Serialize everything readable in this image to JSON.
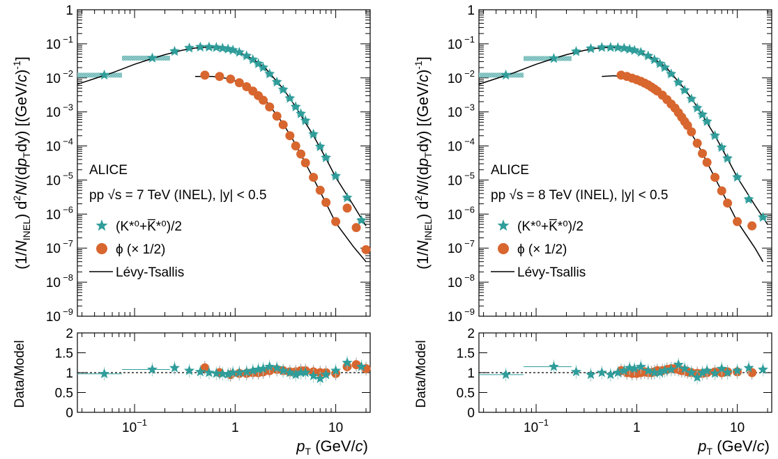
{
  "colors": {
    "kstar": "#2f9d9a",
    "kstar_box": "#9fd0cf",
    "phi": "#d8662f",
    "phi_box": "#f3c29a",
    "fit": "#000000"
  },
  "common": {
    "xlabel_p": "p",
    "xlabel_sub": "T",
    "xlabel_unit": " (GeV/",
    "xlabel_c": "c",
    "xlabel_close": ")",
    "ratio_ylabel": "Data/Model",
    "xtick_labels": [
      "10",
      "1",
      "10"
    ],
    "xtick_exps": [
      "−1",
      "",
      ""
    ],
    "ytick_mantissa": "10",
    "ytick_exps": [
      "−9",
      "−8",
      "−7",
      "−6",
      "−5",
      "−4",
      "−3",
      "−2",
      "−1"
    ],
    "ytick_one": "1",
    "ratio_ticks": [
      "0",
      "0.5",
      "1",
      "1.5",
      "2"
    ],
    "ylabel": {
      "p1": "(1/",
      "N": "N",
      "inel": "INEL",
      "p2": ") d",
      "sq": "2",
      "N2": "N",
      "p3": "/(d",
      "p": "p",
      "T": "T",
      "p4": "dy) [(GeV/",
      "c": "c",
      "p5": ")",
      "m1": "-1",
      "p6": "]"
    },
    "legend": {
      "alice": "ALICE",
      "kstar_label": "(K*⁰+K̅*⁰)/2",
      "phi_label": "ϕ (× 1/2)",
      "fit_label": "Lévy-Tsallis"
    }
  },
  "panels": [
    {
      "energy_text": "pp  √s = 7 TeV (INEL), |y| < 0.5"
    },
    {
      "energy_text": "pp  √s = 8 TeV (INEL), |y| < 0.5"
    }
  ],
  "chart_data": [
    {
      "type": "scatter",
      "title": "",
      "xlabel": "pT (GeV/c)",
      "ylabel": "(1/N_INEL) d2N/(dpT dy) [(GeV/c)-1]",
      "xscale": "log",
      "yscale": "log",
      "xlim": [
        0.027,
        22
      ],
      "ylim": [
        1e-09,
        1
      ],
      "ratio_ylim": [
        0,
        2
      ],
      "legend_position": "left-middle",
      "series": [
        {
          "name": "(K*0+K̅*0)/2",
          "marker": "star",
          "x": [
            0.05,
            0.15,
            0.25,
            0.35,
            0.45,
            0.55,
            0.65,
            0.75,
            0.85,
            0.95,
            1.1,
            1.3,
            1.5,
            1.7,
            1.9,
            2.2,
            2.6,
            3.0,
            3.5,
            4.0,
            4.5,
            5.0,
            6.0,
            7.0,
            8.0,
            10.0,
            13.0,
            18.0
          ],
          "y": [
            0.012,
            0.038,
            0.06,
            0.075,
            0.08,
            0.08,
            0.078,
            0.074,
            0.07,
            0.065,
            0.056,
            0.044,
            0.034,
            0.026,
            0.02,
            0.013,
            0.0075,
            0.0045,
            0.0025,
            0.0014,
            0.00088,
            0.00055,
            0.00022,
            9.5e-05,
            4.5e-05,
            1.3e-05,
            3e-06,
            6.5e-07
          ],
          "ratio": [
            0.97,
            1.08,
            1.12,
            1.05,
            1.02,
            1.0,
            0.98,
            0.97,
            0.96,
            1.0,
            1.0,
            1.02,
            1.05,
            1.08,
            1.1,
            1.15,
            1.12,
            1.05,
            1.0,
            0.95,
            1.0,
            1.0,
            0.92,
            0.85,
            0.95,
            1.05,
            1.25,
            1.15
          ]
        },
        {
          "name": "ϕ (× 1/2)",
          "marker": "circle",
          "x": [
            0.5,
            0.7,
            0.9,
            1.1,
            1.3,
            1.5,
            1.7,
            1.9,
            2.2,
            2.6,
            3.0,
            3.5,
            4.0,
            4.5,
            5.0,
            6.0,
            7.0,
            8.0,
            10.0,
            13.0,
            16.0,
            20.0
          ],
          "y": [
            0.012,
            0.011,
            0.0092,
            0.0072,
            0.0055,
            0.0041,
            0.003,
            0.0022,
            0.0014,
            0.00075,
            0.00042,
            0.0002,
            0.0001,
            5.8e-05,
            3.2e-05,
            1.2e-05,
            5e-06,
            2.2e-06,
            6e-07,
            1.5e-06,
            4e-07,
            9e-08
          ],
          "ratio": [
            1.12,
            1.0,
            0.95,
            0.98,
            0.98,
            1.0,
            1.0,
            1.02,
            1.05,
            1.08,
            1.05,
            1.02,
            1.02,
            1.05,
            1.05,
            1.02,
            1.0,
            1.0,
            0.98,
            1.15,
            1.2,
            1.1
          ]
        },
        {
          "name": "Lévy-Tsallis",
          "marker": "line",
          "curves": [
            {
              "for": "kstar",
              "x": [
                0.027,
                0.04,
                0.06,
                0.1,
                0.15,
                0.2,
                0.3,
                0.4,
                0.5,
                0.6,
                0.8,
                1.0,
                1.5,
                2.0,
                3.0,
                4.0,
                6.0,
                8.0,
                10.0,
                15.0,
                20.0
              ],
              "y": [
                0.0065,
                0.0095,
                0.014,
                0.025,
                0.037,
                0.048,
                0.065,
                0.075,
                0.079,
                0.079,
                0.073,
                0.063,
                0.036,
                0.019,
                0.0048,
                0.0014,
                0.0002,
                4.3e-05,
                1.2e-05,
                1.8e-06,
                4.5e-07
              ]
            },
            {
              "for": "phi",
              "x": [
                0.4,
                0.6,
                0.8,
                1.0,
                1.5,
                2.0,
                3.0,
                4.0,
                6.0,
                8.0,
                10.0,
                15.0,
                20.0
              ],
              "y": [
                0.011,
                0.011,
                0.0098,
                0.0082,
                0.0046,
                0.0022,
                0.00045,
                0.00011,
                1.1e-05,
                2.1e-06,
                5.5e-07,
                1.1e-07,
                4e-08
              ]
            }
          ]
        }
      ]
    },
    {
      "type": "scatter",
      "title": "",
      "xlabel": "pT (GeV/c)",
      "ylabel": "(1/N_INEL) d2N/(dpT dy) [(GeV/c)-1]",
      "xscale": "log",
      "yscale": "log",
      "xlim": [
        0.027,
        22
      ],
      "ylim": [
        1e-09,
        1
      ],
      "ratio_ylim": [
        0,
        2
      ],
      "legend_position": "left-middle",
      "series": [
        {
          "name": "(K*0+K̅*0)/2",
          "marker": "star",
          "x": [
            0.05,
            0.15,
            0.25,
            0.35,
            0.45,
            0.55,
            0.65,
            0.75,
            0.85,
            0.95,
            1.1,
            1.3,
            1.5,
            1.7,
            1.9,
            2.2,
            2.6,
            3.0,
            3.5,
            4.0,
            4.5,
            5.0,
            6.0,
            7.0,
            8.0,
            10.0,
            13.0,
            18.0
          ],
          "y": [
            0.012,
            0.037,
            0.059,
            0.072,
            0.078,
            0.078,
            0.077,
            0.074,
            0.069,
            0.064,
            0.056,
            0.044,
            0.034,
            0.026,
            0.02,
            0.013,
            0.0073,
            0.0043,
            0.0024,
            0.0013,
            0.00083,
            0.00052,
            0.0002,
            9e-05,
            4.3e-05,
            1.2e-05,
            2.7e-06,
            8e-07
          ],
          "ratio": [
            0.95,
            1.15,
            1.02,
            0.95,
            1.0,
            0.95,
            1.0,
            1.05,
            1.12,
            1.1,
            1.15,
            1.05,
            1.0,
            1.0,
            1.05,
            1.08,
            1.2,
            1.1,
            1.0,
            0.88,
            1.0,
            1.05,
            0.98,
            1.1,
            1.0,
            1.05,
            1.12,
            1.08
          ]
        },
        {
          "name": "ϕ (× 1/2)",
          "marker": "circle",
          "x": [
            0.7,
            0.8,
            0.9,
            1.0,
            1.1,
            1.2,
            1.3,
            1.4,
            1.5,
            1.6,
            1.8,
            2.0,
            2.2,
            2.4,
            2.6,
            2.8,
            3.0,
            3.2,
            3.5,
            4.0,
            4.5,
            5.0,
            6.0,
            7.0,
            8.0,
            10.0,
            14.0
          ],
          "y": [
            0.012,
            0.011,
            0.0098,
            0.0088,
            0.0079,
            0.007,
            0.0062,
            0.0054,
            0.0047,
            0.0041,
            0.0031,
            0.0023,
            0.0017,
            0.0013,
            0.00095,
            0.0007,
            0.00052,
            0.0004,
            0.00026,
            0.00012,
            6e-05,
            3.3e-05,
            1.2e-05,
            4.8e-06,
            2.1e-06,
            6e-07,
            4.5e-07
          ],
          "ratio": [
            1.05,
            1.0,
            0.98,
            0.98,
            1.0,
            1.02,
            1.0,
            1.0,
            1.02,
            1.05,
            1.05,
            1.08,
            1.1,
            1.1,
            1.08,
            1.05,
            1.05,
            1.02,
            1.0,
            0.98,
            0.98,
            1.0,
            1.02,
            1.0,
            1.02,
            1.02,
            1.0
          ]
        },
        {
          "name": "Lévy-Tsallis",
          "marker": "line",
          "curves": [
            {
              "for": "kstar",
              "x": [
                0.027,
                0.04,
                0.06,
                0.1,
                0.15,
                0.2,
                0.3,
                0.4,
                0.5,
                0.6,
                0.8,
                1.0,
                1.5,
                2.0,
                3.0,
                4.0,
                6.0,
                8.0,
                10.0,
                15.0,
                20.0
              ],
              "y": [
                0.0065,
                0.0095,
                0.014,
                0.025,
                0.037,
                0.048,
                0.064,
                0.074,
                0.078,
                0.078,
                0.073,
                0.063,
                0.036,
                0.019,
                0.0047,
                0.0014,
                0.0002,
                4.2e-05,
                1.2e-05,
                1.8e-06,
                5e-07
              ]
            },
            {
              "for": "phi",
              "x": [
                0.45,
                0.6,
                0.8,
                1.0,
                1.5,
                2.0,
                3.0,
                4.0,
                6.0,
                8.0,
                10.0,
                15.0,
                18.0
              ],
              "y": [
                0.011,
                0.0115,
                0.01,
                0.0085,
                0.0048,
                0.0023,
                0.00048,
                0.00012,
                1.15e-05,
                2.2e-06,
                6e-07,
                1e-07,
                4e-08
              ]
            }
          ]
        }
      ]
    }
  ]
}
